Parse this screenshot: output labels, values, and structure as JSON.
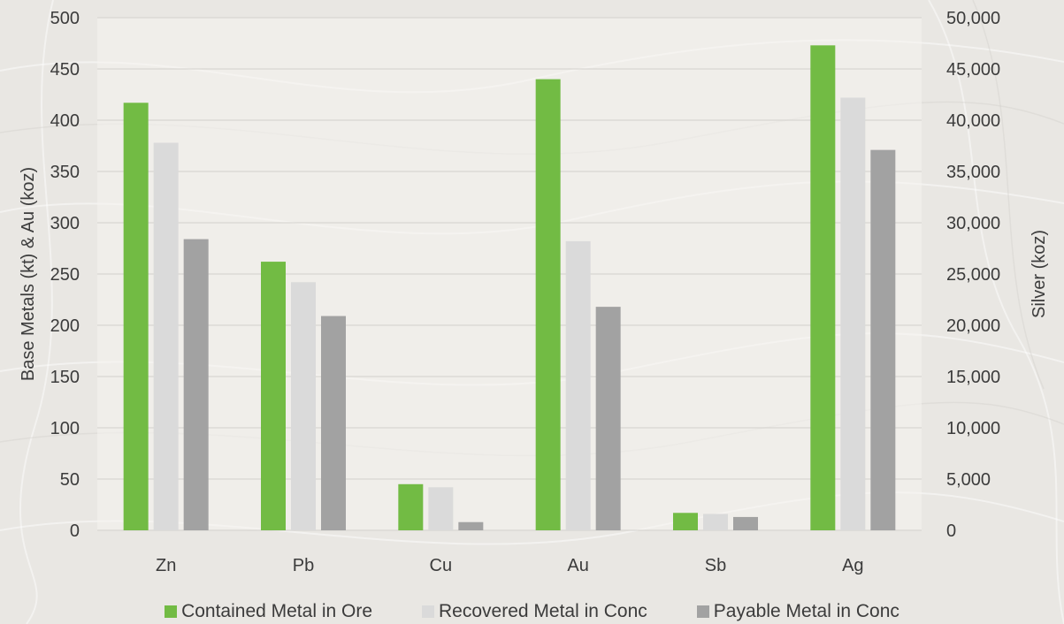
{
  "chart_data": {
    "type": "bar",
    "categories": [
      "Zn",
      "Pb",
      "Cu",
      "Au",
      "Sb",
      "Ag"
    ],
    "series": [
      {
        "name": "Contained Metal in Ore",
        "color": "#72bb44",
        "values": [
          417,
          262,
          45,
          440,
          17,
          47300
        ]
      },
      {
        "name": "Recovered Metal in Conc",
        "color": "#dadada",
        "values": [
          378,
          242,
          42,
          282,
          16,
          42200
        ]
      },
      {
        "name": "Payable Metal in Conc",
        "color": "#a2a2a2",
        "values": [
          284,
          209,
          8,
          218,
          13,
          37100
        ]
      }
    ],
    "secondary_axis_categories": [
      "Ag"
    ],
    "ylabel": "Base Metals (kt) & Au (koz)",
    "ylabel_right": "Silver (koz)",
    "ylim": [
      0,
      500
    ],
    "ylim_right": [
      0,
      50000
    ],
    "yticks_left": [
      "0",
      "50",
      "100",
      "150",
      "200",
      "250",
      "300",
      "350",
      "400",
      "450",
      "500"
    ],
    "yticks_right": [
      "0",
      "5,000",
      "10,000",
      "15,000",
      "20,000",
      "25,000",
      "30,000",
      "35,000",
      "40,000",
      "45,000",
      "50,000"
    ],
    "grid": true,
    "legend_position": "bottom"
  }
}
